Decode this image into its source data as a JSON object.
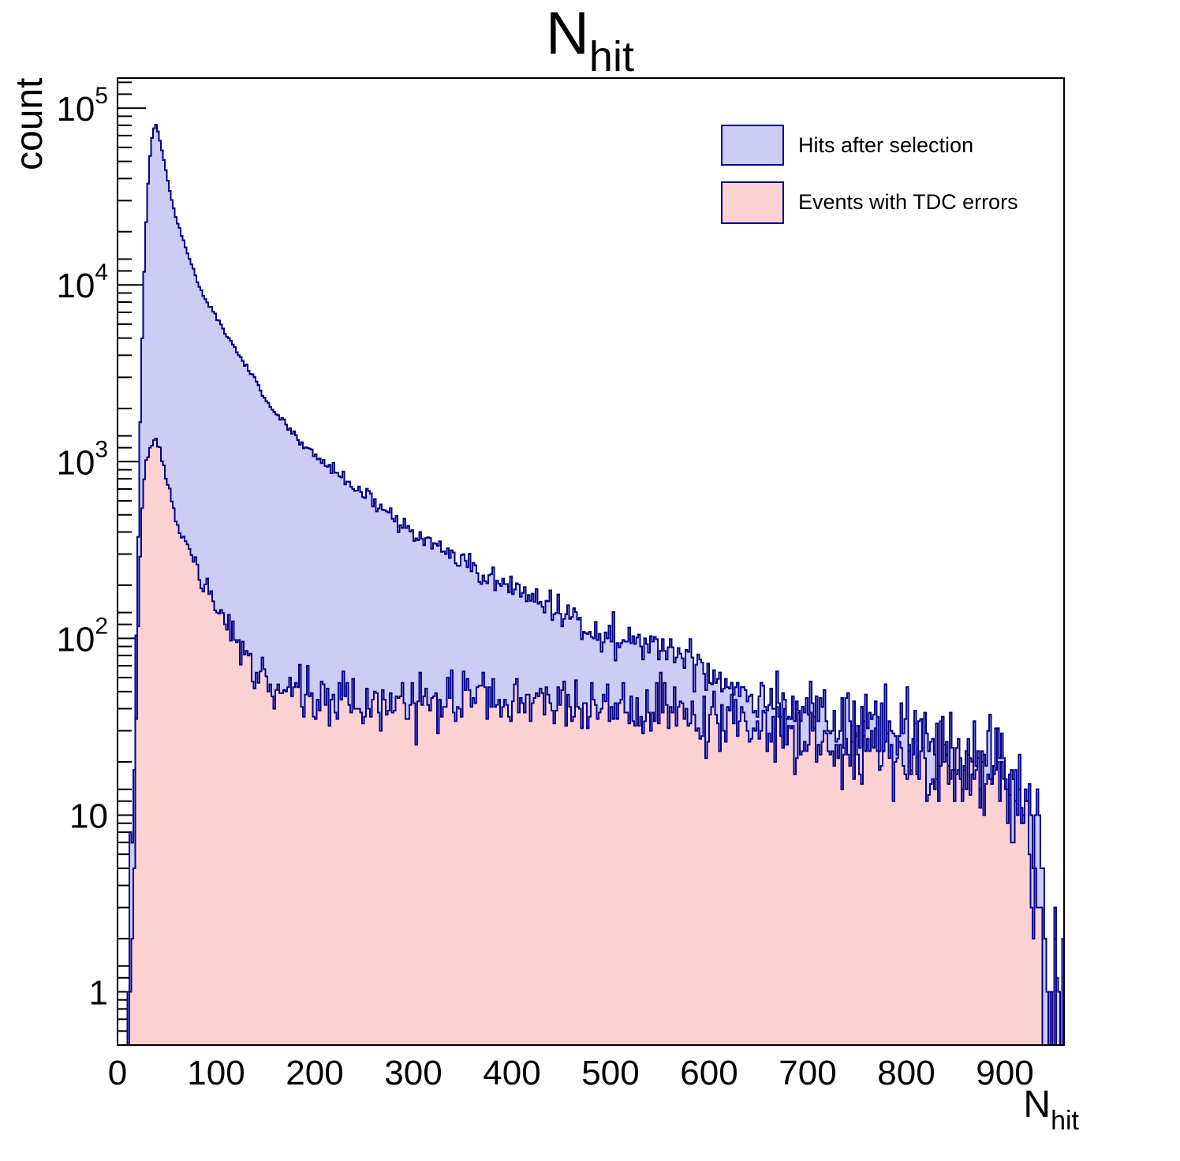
{
  "title": {
    "main": "N",
    "sub": "hit"
  },
  "axes": {
    "x": {
      "label_main": "N",
      "label_sub": "hit",
      "min": 0,
      "max": 960,
      "major_ticks": [
        0,
        100,
        200,
        300,
        400,
        500,
        600,
        700,
        800,
        900
      ],
      "minor_step": 20
    },
    "y": {
      "label": "count",
      "scale": "log",
      "min": 0.5,
      "max": 148000,
      "major_ticks": [
        1,
        10,
        100,
        1000,
        10000,
        100000
      ],
      "minor_mantissas": [
        1.2,
        1.4,
        2,
        3,
        4,
        5,
        6,
        7,
        8,
        9
      ]
    }
  },
  "legend": {
    "items": [
      {
        "label": "Hits after selection",
        "color_key": "blue"
      },
      {
        "label": "Events with TDC errors",
        "color_key": "pink"
      }
    ]
  },
  "colors": {
    "blue_fill": "#ccccf5",
    "pink_fill": "#fcd1d2",
    "line": "#00008b",
    "frame": "#000000",
    "text": "#000000"
  },
  "chart_data": {
    "type": "histogram-step",
    "title": "N_hit",
    "xlabel": "N_hit",
    "ylabel": "count",
    "x_range": [
      0,
      960
    ],
    "y_range_log": [
      0.5,
      148000
    ],
    "bin_width": 2,
    "noise": {
      "seed": 42,
      "k": 1.25,
      "cutoff": 0.22
    },
    "series": [
      {
        "name": "Hits after selection",
        "color_key": "blue",
        "anchors": [
          [
            2,
            0.28
          ],
          [
            5,
            0.6
          ],
          [
            8,
            0.8
          ],
          [
            10,
            1.2
          ],
          [
            12,
            2.2
          ],
          [
            14,
            5
          ],
          [
            16,
            14
          ],
          [
            18,
            55
          ],
          [
            20,
            230
          ],
          [
            22,
            900
          ],
          [
            24,
            3000
          ],
          [
            26,
            8000
          ],
          [
            28,
            17000
          ],
          [
            30,
            30000
          ],
          [
            32,
            46000
          ],
          [
            34,
            62000
          ],
          [
            36,
            74000
          ],
          [
            38,
            81000
          ],
          [
            40,
            78500
          ],
          [
            42,
            70000
          ],
          [
            45,
            58000
          ],
          [
            48,
            47500
          ],
          [
            52,
            36500
          ],
          [
            56,
            28500
          ],
          [
            60,
            23000
          ],
          [
            66,
            18500
          ],
          [
            72,
            14500
          ],
          [
            80,
            10800
          ],
          [
            90,
            8100
          ],
          [
            100,
            6700
          ],
          [
            110,
            5300
          ],
          [
            122,
            4100
          ],
          [
            135,
            3150
          ],
          [
            150,
            2280
          ],
          [
            165,
            1760
          ],
          [
            180,
            1400
          ],
          [
            200,
            1080
          ],
          [
            220,
            880
          ],
          [
            240,
            730
          ],
          [
            260,
            590
          ],
          [
            280,
            475
          ],
          [
            300,
            395
          ],
          [
            320,
            335
          ],
          [
            340,
            288
          ],
          [
            360,
            248
          ],
          [
            380,
            215
          ],
          [
            400,
            190
          ],
          [
            420,
            168
          ],
          [
            440,
            152
          ],
          [
            460,
            133
          ],
          [
            480,
            118
          ],
          [
            500,
            104
          ],
          [
            515,
            95
          ],
          [
            530,
            90
          ],
          [
            545,
            92
          ],
          [
            560,
            88
          ],
          [
            575,
            78
          ],
          [
            590,
            70
          ],
          [
            605,
            62
          ],
          [
            625,
            55
          ],
          [
            645,
            50
          ],
          [
            665,
            46
          ],
          [
            685,
            42
          ],
          [
            705,
            39
          ],
          [
            725,
            36
          ],
          [
            745,
            33
          ],
          [
            765,
            30
          ],
          [
            785,
            28
          ],
          [
            805,
            26
          ],
          [
            825,
            24
          ],
          [
            845,
            22.5
          ],
          [
            865,
            21
          ],
          [
            885,
            20
          ],
          [
            900,
            18
          ],
          [
            910,
            16
          ],
          [
            918,
            13
          ],
          [
            925,
            10
          ],
          [
            930,
            7
          ],
          [
            935,
            6
          ],
          [
            938,
            5
          ],
          [
            941,
            4
          ],
          [
            943,
            1.5
          ],
          [
            945,
            0.3
          ],
          [
            960,
            0.2
          ]
        ],
        "spikes": [
          [
            948,
            1
          ],
          [
            952,
            1.2
          ],
          [
            955,
            1
          ],
          [
            958,
            2
          ]
        ]
      },
      {
        "name": "Events with TDC errors",
        "color_key": "pink",
        "anchors": [
          [
            10,
            0.2
          ],
          [
            12,
            0.45
          ],
          [
            14,
            1
          ],
          [
            16,
            3.5
          ],
          [
            18,
            14
          ],
          [
            20,
            55
          ],
          [
            22,
            180
          ],
          [
            24,
            430
          ],
          [
            26,
            700
          ],
          [
            28,
            900
          ],
          [
            30,
            1060
          ],
          [
            33,
            1220
          ],
          [
            36,
            1330
          ],
          [
            38,
            1370
          ],
          [
            40,
            1310
          ],
          [
            42,
            1210
          ],
          [
            45,
            1010
          ],
          [
            48,
            840
          ],
          [
            52,
            690
          ],
          [
            57,
            545
          ],
          [
            63,
            430
          ],
          [
            70,
            335
          ],
          [
            78,
            262
          ],
          [
            88,
            196
          ],
          [
            100,
            150
          ],
          [
            112,
            114
          ],
          [
            125,
            87
          ],
          [
            140,
            66
          ],
          [
            155,
            55
          ],
          [
            170,
            49
          ],
          [
            190,
            46.5
          ],
          [
            220,
            45.5
          ],
          [
            250,
            44.5
          ],
          [
            280,
            44
          ],
          [
            310,
            43.5
          ],
          [
            340,
            42.5
          ],
          [
            370,
            43
          ],
          [
            400,
            44
          ],
          [
            430,
            42.5
          ],
          [
            460,
            41
          ],
          [
            490,
            39.5
          ],
          [
            520,
            38
          ],
          [
            550,
            36.5
          ],
          [
            580,
            35
          ],
          [
            610,
            33
          ],
          [
            640,
            31
          ],
          [
            670,
            29
          ],
          [
            700,
            27
          ],
          [
            730,
            25
          ],
          [
            760,
            23.5
          ],
          [
            790,
            22
          ],
          [
            820,
            20
          ],
          [
            850,
            18.5
          ],
          [
            875,
            17
          ],
          [
            895,
            15
          ],
          [
            908,
            13
          ],
          [
            916,
            11
          ],
          [
            923,
            8.5
          ],
          [
            928,
            6
          ],
          [
            932,
            4
          ],
          [
            936,
            2.2
          ],
          [
            939,
            1.1
          ],
          [
            941,
            0.4
          ],
          [
            960,
            0.2
          ]
        ],
        "spikes": [
          [
            944,
            1
          ],
          [
            946,
            1
          ]
        ]
      }
    ]
  }
}
